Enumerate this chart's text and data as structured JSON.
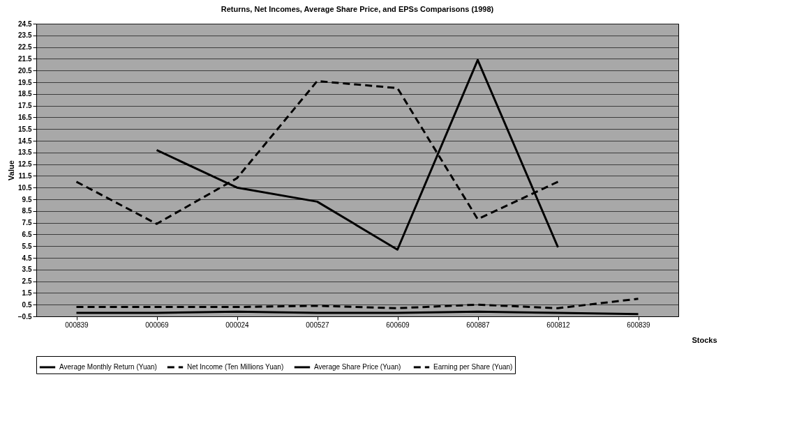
{
  "chart_data": {
    "type": "line",
    "title": "Returns, Net Incomes, Average Share Price, and EPSs Comparisons (1998)",
    "xlabel": "Stocks",
    "ylabel": "Value",
    "categories": [
      "000839",
      "000069",
      "000024",
      "000527",
      "600609",
      "600887",
      "600812",
      "600839"
    ],
    "series": [
      {
        "name": "Average Monthly Return (Yuan)",
        "color": "#000000",
        "line_style": "solid",
        "values": [
          -0.2,
          -0.2,
          -0.1,
          -0.2,
          -0.2,
          -0.1,
          -0.2,
          -0.3
        ]
      },
      {
        "name": "Net Income (Ten Millions Yuan)",
        "color": "#000000",
        "line_style": "dashed",
        "values": [
          11.0,
          7.4,
          11.3,
          19.6,
          19.0,
          7.8,
          11.0,
          null
        ]
      },
      {
        "name": "Average  Share Price (Yuan)",
        "color": "#000000",
        "line_style": "solid",
        "values": [
          null,
          13.7,
          10.5,
          9.3,
          5.2,
          21.4,
          5.4,
          null
        ]
      },
      {
        "name": "Earning per Share (Yuan)",
        "color": "#000000",
        "line_style": "dashed",
        "values": [
          0.3,
          0.3,
          0.3,
          0.4,
          0.2,
          0.5,
          0.2,
          1.0
        ]
      }
    ],
    "ylim": [
      -0.5,
      24.5
    ],
    "yticks": [
      -0.5,
      0.5,
      1.5,
      2.5,
      3.5,
      4.5,
      5.5,
      6.5,
      7.5,
      8.5,
      9.5,
      10.5,
      11.5,
      12.5,
      13.5,
      14.5,
      15.5,
      16.5,
      17.5,
      18.5,
      19.5,
      20.5,
      21.5,
      22.5,
      23.5,
      24.5
    ],
    "grid": "y",
    "legend": "bottom"
  }
}
